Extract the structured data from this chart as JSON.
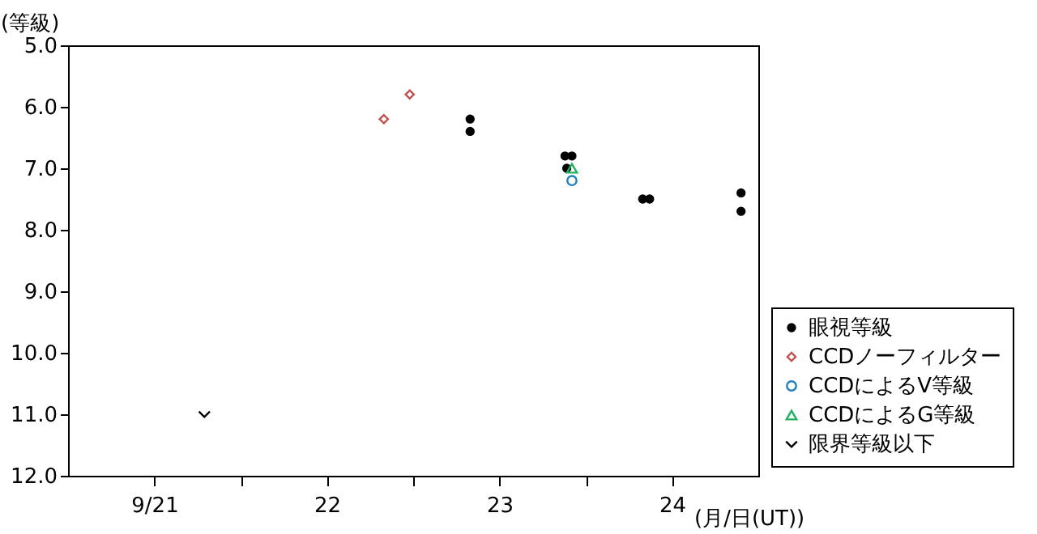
{
  "chart_data": {
    "type": "scatter",
    "xlabel": "(月/日(UT))",
    "ylabel": "(等級)",
    "xlim": [
      20.5,
      24.5
    ],
    "xticks": [
      {
        "value": 21,
        "label": "9/21"
      },
      {
        "value": 21.5,
        "label": null
      },
      22,
      {
        "value": 22.5,
        "label": null
      },
      23,
      {
        "value": 23.5,
        "label": null
      },
      24
    ],
    "ylim": [
      12.0,
      5.0
    ],
    "yticks": [
      {
        "value": 5,
        "label": "5.0"
      },
      {
        "value": 6,
        "label": "6.0"
      },
      {
        "value": 7,
        "label": "7.0"
      },
      {
        "value": 8,
        "label": "8.0"
      },
      {
        "value": 9,
        "label": "9.0"
      },
      {
        "value": 10,
        "label": "10.0"
      },
      {
        "value": 11,
        "label": "11.0"
      },
      {
        "value": 12,
        "label": "12.0"
      }
    ],
    "grid": false,
    "legend": "bottom right",
    "series": [
      {
        "name": "眼視等級",
        "color": "#000000",
        "marker": "circle",
        "x": [
          22.83,
          22.83,
          23.38,
          23.42,
          23.39,
          23.83,
          23.87,
          24.4,
          24.4
        ],
        "values": [
          6.2,
          6.4,
          6.8,
          6.8,
          7.0,
          7.5,
          7.5,
          7.4,
          7.7
        ]
      },
      {
        "name": "CCDノーフィルター",
        "color": "#c0504d",
        "marker": "diamond",
        "x": [
          22.33,
          22.48
        ],
        "values": [
          6.2,
          5.8
        ]
      },
      {
        "name": "CCDによるV等級",
        "color": "#1f7fc0",
        "marker": "circle",
        "x": [
          23.42
        ],
        "values": [
          7.2
        ]
      },
      {
        "name": "CCDによるG等級",
        "color": "#22b060",
        "marker": "triangle",
        "x": [
          23.42
        ],
        "values": [
          7.0
        ]
      },
      {
        "name": "限界等級以下",
        "color": "#000000",
        "x": [
          21.29
        ],
        "values": [
          11.0
        ]
      }
    ]
  }
}
